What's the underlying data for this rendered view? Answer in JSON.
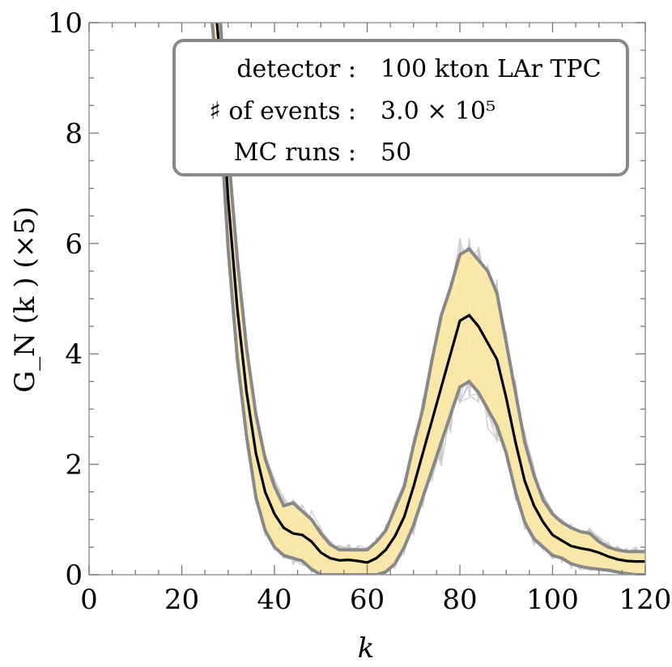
{
  "chart_data": {
    "type": "line",
    "xlabel": "k",
    "ylabel": "G_N (k ) (×5)",
    "xlim": [
      0,
      120
    ],
    "ylim": [
      0,
      10
    ],
    "xticks": [
      0,
      20,
      40,
      60,
      80,
      100,
      120
    ],
    "yticks": [
      0,
      2,
      4,
      6,
      8,
      10
    ],
    "legend": {
      "placement": "top-right",
      "rows": [
        {
          "label": "detector :",
          "value": "100 kton LAr TPC"
        },
        {
          "label": "♯ of events :",
          "value": "3.0 × 10⁵"
        },
        {
          "label": "MC runs :",
          "value": "50"
        }
      ]
    },
    "x": [
      26,
      28,
      30,
      32,
      34,
      36,
      38,
      40,
      42,
      44,
      46,
      48,
      50,
      52,
      54,
      56,
      58,
      60,
      62,
      64,
      66,
      68,
      70,
      72,
      74,
      76,
      78,
      80,
      82,
      84,
      86,
      88,
      90,
      92,
      94,
      96,
      98,
      100,
      102,
      104,
      106,
      108,
      110,
      112,
      114,
      116,
      118,
      120
    ],
    "series": [
      {
        "role": "mean",
        "color": "#000000",
        "values": [
          11.5,
          9.6,
          6.8,
          4.8,
          3.3,
          2.2,
          1.5,
          1.1,
          0.85,
          0.75,
          0.72,
          0.6,
          0.4,
          0.3,
          0.26,
          0.27,
          0.25,
          0.22,
          0.3,
          0.45,
          0.7,
          1.05,
          1.6,
          2.2,
          2.8,
          3.4,
          4.0,
          4.6,
          4.7,
          4.5,
          4.2,
          3.9,
          3.2,
          2.4,
          1.7,
          1.25,
          0.95,
          0.72,
          0.62,
          0.52,
          0.48,
          0.45,
          0.4,
          0.33,
          0.28,
          0.25,
          0.24,
          0.24
        ]
      },
      {
        "role": "upper-band",
        "color": "#888888",
        "values": [
          12.5,
          10.5,
          7.7,
          5.7,
          4.1,
          2.9,
          2.1,
          1.6,
          1.25,
          1.3,
          1.15,
          1.0,
          0.75,
          0.55,
          0.45,
          0.45,
          0.45,
          0.45,
          0.6,
          0.8,
          1.2,
          1.6,
          2.35,
          3.0,
          3.9,
          4.7,
          5.2,
          5.8,
          5.9,
          5.7,
          5.5,
          5.1,
          4.2,
          3.3,
          2.4,
          1.8,
          1.35,
          1.1,
          0.95,
          0.85,
          0.78,
          0.75,
          0.6,
          0.5,
          0.45,
          0.42,
          0.42,
          0.42
        ]
      },
      {
        "role": "lower-band",
        "color": "#888888",
        "values": [
          10.5,
          8.7,
          5.9,
          3.9,
          2.5,
          1.4,
          0.8,
          0.5,
          0.35,
          0.3,
          0.25,
          0.1,
          0.0,
          0.0,
          0.0,
          0.0,
          0.0,
          0.0,
          0.0,
          0.05,
          0.2,
          0.5,
          0.9,
          1.4,
          1.9,
          2.4,
          2.9,
          3.4,
          3.5,
          3.3,
          3.0,
          2.7,
          2.2,
          1.5,
          0.95,
          0.65,
          0.5,
          0.35,
          0.3,
          0.2,
          0.15,
          0.12,
          0.1,
          0.08,
          0.05,
          0.02,
          0.0,
          0.0
        ]
      }
    ],
    "band_fill": "#fde9a6",
    "runs_color": "#cccccc",
    "mc_runs": 50
  }
}
